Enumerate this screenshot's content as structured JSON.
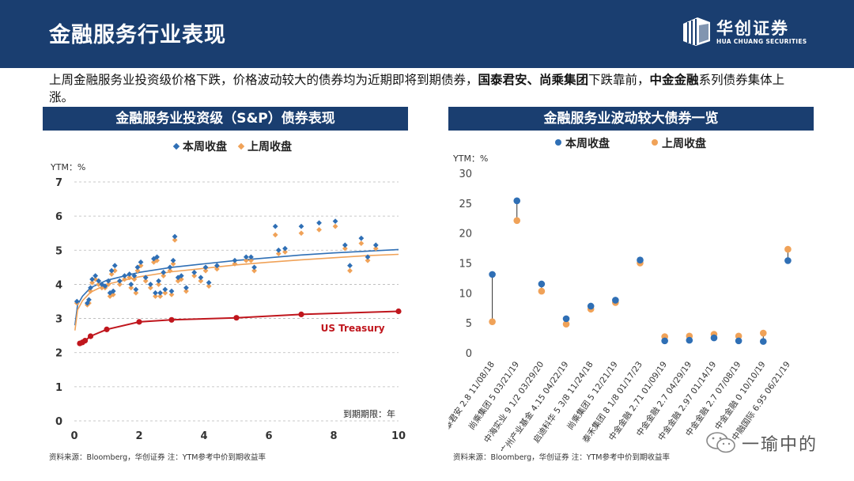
{
  "header": {
    "title": "金融服务行业表现",
    "logo_cn": "华创证券",
    "logo_en": "HUA CHUANG SECURITIES"
  },
  "intro": {
    "part1": "上周金融服务业投资级价格下跌，价格波动较大的债券均为近期即将到期债券，",
    "bold1": "国泰君安、尚乘集团",
    "part2": "下跌靠前，",
    "bold2": "中金金融",
    "part3": "系列债券集体上涨。"
  },
  "left_panel": {
    "title": "金融服务业投资级（S&P）债券表现"
  },
  "right_panel": {
    "title": "金融服务业波动较大债券一览"
  },
  "source_left": "资料来源：Bloomberg，华创证券     注：YTM参考中价到期收益率",
  "source_right": "资料来源：Bloomberg，华创证券     注：YTM参考中价到期收益率",
  "watermark": "一瑜中的",
  "colors": {
    "this_week": "#2f6fb5",
    "last_week": "#f0a258",
    "treasury": "#c0161d",
    "navy": "#1a3e70"
  },
  "chart_data": [
    {
      "type": "scatter",
      "title": "金融服务业投资级（S&P）债券表现",
      "ylabel": "YTM：%",
      "xlabel": "到期期限：年",
      "xlim": [
        0,
        10
      ],
      "ylim": [
        0,
        7
      ],
      "xticks": [
        0,
        2,
        4,
        6,
        8,
        10
      ],
      "yticks": [
        0,
        1,
        2,
        3,
        4,
        5,
        6,
        7
      ],
      "legend": [
        "本周收盘",
        "上周收盘"
      ],
      "treasury_label": "US Treasury",
      "series": [
        {
          "name": "本周收盘",
          "points": [
            [
              0.08,
              3.5
            ],
            [
              0.4,
              3.45
            ],
            [
              0.45,
              3.55
            ],
            [
              0.5,
              3.9
            ],
            [
              0.55,
              4.15
            ],
            [
              0.65,
              4.25
            ],
            [
              0.75,
              4.1
            ],
            [
              0.85,
              4.0
            ],
            [
              0.95,
              3.95
            ],
            [
              1.05,
              4.1
            ],
            [
              1.1,
              3.75
            ],
            [
              1.15,
              4.4
            ],
            [
              1.2,
              3.8
            ],
            [
              1.25,
              4.55
            ],
            [
              1.4,
              4.1
            ],
            [
              1.55,
              4.25
            ],
            [
              1.7,
              4.3
            ],
            [
              1.75,
              4.0
            ],
            [
              1.85,
              4.25
            ],
            [
              1.9,
              3.85
            ],
            [
              1.95,
              4.5
            ],
            [
              2.05,
              4.65
            ],
            [
              2.2,
              4.2
            ],
            [
              2.35,
              4.0
            ],
            [
              2.45,
              4.75
            ],
            [
              2.5,
              3.75
            ],
            [
              2.55,
              4.8
            ],
            [
              2.6,
              4.1
            ],
            [
              2.65,
              3.75
            ],
            [
              2.75,
              4.35
            ],
            [
              2.8,
              3.85
            ],
            [
              2.95,
              4.5
            ],
            [
              3.0,
              3.8
            ],
            [
              3.05,
              4.7
            ],
            [
              3.1,
              5.4
            ],
            [
              3.2,
              4.2
            ],
            [
              3.3,
              4.25
            ],
            [
              3.45,
              3.9
            ],
            [
              3.7,
              4.35
            ],
            [
              3.9,
              4.2
            ],
            [
              4.05,
              4.5
            ],
            [
              4.15,
              4.05
            ],
            [
              4.4,
              4.55
            ],
            [
              4.95,
              4.7
            ],
            [
              5.3,
              4.8
            ],
            [
              5.45,
              4.8
            ],
            [
              5.55,
              4.5
            ],
            [
              6.2,
              5.7
            ],
            [
              6.3,
              5.0
            ],
            [
              6.5,
              5.05
            ],
            [
              7.0,
              5.7
            ],
            [
              7.55,
              5.8
            ],
            [
              8.05,
              5.85
            ],
            [
              8.35,
              5.15
            ],
            [
              8.5,
              4.55
            ],
            [
              8.85,
              5.35
            ],
            [
              9.05,
              4.8
            ],
            [
              9.3,
              5.15
            ]
          ]
        },
        {
          "name": "上周收盘",
          "points": [
            [
              0.08,
              3.45
            ],
            [
              0.4,
              3.4
            ],
            [
              0.45,
              3.45
            ],
            [
              0.5,
              3.8
            ],
            [
              0.55,
              4.05
            ],
            [
              0.65,
              4.15
            ],
            [
              0.75,
              4.0
            ],
            [
              0.85,
              3.9
            ],
            [
              0.95,
              3.9
            ],
            [
              1.05,
              4.0
            ],
            [
              1.1,
              3.65
            ],
            [
              1.15,
              4.3
            ],
            [
              1.2,
              3.7
            ],
            [
              1.25,
              4.4
            ],
            [
              1.4,
              4.0
            ],
            [
              1.55,
              4.15
            ],
            [
              1.7,
              4.2
            ],
            [
              1.75,
              3.9
            ],
            [
              1.85,
              4.15
            ],
            [
              1.9,
              3.75
            ],
            [
              1.95,
              4.4
            ],
            [
              2.05,
              4.55
            ],
            [
              2.2,
              4.1
            ],
            [
              2.35,
              3.9
            ],
            [
              2.45,
              4.65
            ],
            [
              2.5,
              3.65
            ],
            [
              2.55,
              4.7
            ],
            [
              2.6,
              4.0
            ],
            [
              2.65,
              3.65
            ],
            [
              2.75,
              4.25
            ],
            [
              2.8,
              3.75
            ],
            [
              2.95,
              4.4
            ],
            [
              3.0,
              3.7
            ],
            [
              3.05,
              4.6
            ],
            [
              3.1,
              5.3
            ],
            [
              3.2,
              4.1
            ],
            [
              3.3,
              4.15
            ],
            [
              3.45,
              3.8
            ],
            [
              3.7,
              4.25
            ],
            [
              3.9,
              4.1
            ],
            [
              4.05,
              4.4
            ],
            [
              4.15,
              3.95
            ],
            [
              4.4,
              4.45
            ],
            [
              4.95,
              4.6
            ],
            [
              5.3,
              4.7
            ],
            [
              5.45,
              4.7
            ],
            [
              5.55,
              4.4
            ],
            [
              6.2,
              5.45
            ],
            [
              6.3,
              4.9
            ],
            [
              6.5,
              4.95
            ],
            [
              7.0,
              5.5
            ],
            [
              7.55,
              5.6
            ],
            [
              8.05,
              5.7
            ],
            [
              8.35,
              5.05
            ],
            [
              8.5,
              4.4
            ],
            [
              8.85,
              5.2
            ],
            [
              9.05,
              4.7
            ],
            [
              9.3,
              5.05
            ]
          ]
        },
        {
          "name": "US Treasury",
          "points": [
            [
              0.17,
              2.27
            ],
            [
              0.25,
              2.3
            ],
            [
              0.33,
              2.35
            ],
            [
              0.5,
              2.48
            ],
            [
              1.0,
              2.68
            ],
            [
              2.0,
              2.9
            ],
            [
              3.0,
              2.96
            ],
            [
              5.0,
              3.02
            ],
            [
              7.0,
              3.12
            ],
            [
              10.0,
              3.21
            ]
          ]
        }
      ],
      "trendlines": [
        {
          "name": "本周收盘趋势",
          "points": [
            [
              0.02,
              2.8
            ],
            [
              0.1,
              3.4
            ],
            [
              0.25,
              3.65
            ],
            [
              0.5,
              3.9
            ],
            [
              1.0,
              4.12
            ],
            [
              2.0,
              4.35
            ],
            [
              3.0,
              4.5
            ],
            [
              4.0,
              4.6
            ],
            [
              5.0,
              4.7
            ],
            [
              6.0,
              4.78
            ],
            [
              7.0,
              4.86
            ],
            [
              8.0,
              4.92
            ],
            [
              9.0,
              4.97
            ],
            [
              10.0,
              5.02
            ]
          ]
        },
        {
          "name": "上周收盘趋势",
          "points": [
            [
              0.02,
              2.65
            ],
            [
              0.1,
              3.25
            ],
            [
              0.25,
              3.52
            ],
            [
              0.5,
              3.77
            ],
            [
              1.0,
              4.0
            ],
            [
              2.0,
              4.22
            ],
            [
              3.0,
              4.37
            ],
            [
              4.0,
              4.47
            ],
            [
              5.0,
              4.57
            ],
            [
              6.0,
              4.65
            ],
            [
              7.0,
              4.72
            ],
            [
              8.0,
              4.78
            ],
            [
              9.0,
              4.84
            ],
            [
              10.0,
              4.88
            ]
          ]
        }
      ]
    },
    {
      "type": "scatter",
      "title": "金融服务业波动较大债券一览",
      "ylabel": "YTM：%",
      "ylim": [
        0,
        30
      ],
      "yticks": [
        0,
        5,
        10,
        15,
        20,
        25,
        30
      ],
      "legend": [
        "本周收盘",
        "上周收盘"
      ],
      "categories": [
        "国泰君安 2.8 11/08/18",
        "尚乘集团 5 03/21/19",
        "中海实业 9 1/2 03/29/20",
        "广州产业基金 4.15 04/22/19",
        "启迪科华 5 3/8 11/24/18",
        "尚乘集团 5 12/21/19",
        "泰禾集团 8 1/8 01/17/23",
        "中金金融 2.71 01/09/19",
        "中金金融 2.7 04/29/19",
        "中金金融 2.97 01/14/19",
        "中金金融 2.7 07/08/19",
        "中金金融 0 10/10/19",
        "中融国际 6.95 06/21/19"
      ],
      "series": [
        {
          "name": "本周收盘",
          "values": [
            13.1,
            25.4,
            11.5,
            5.7,
            7.8,
            8.8,
            15.5,
            2.0,
            2.1,
            2.5,
            2.0,
            1.9,
            15.4
          ]
        },
        {
          "name": "上周收盘",
          "values": [
            5.2,
            22.1,
            10.3,
            4.8,
            7.3,
            8.4,
            15.0,
            2.7,
            2.8,
            3.1,
            2.8,
            3.3,
            17.3
          ]
        }
      ]
    }
  ]
}
